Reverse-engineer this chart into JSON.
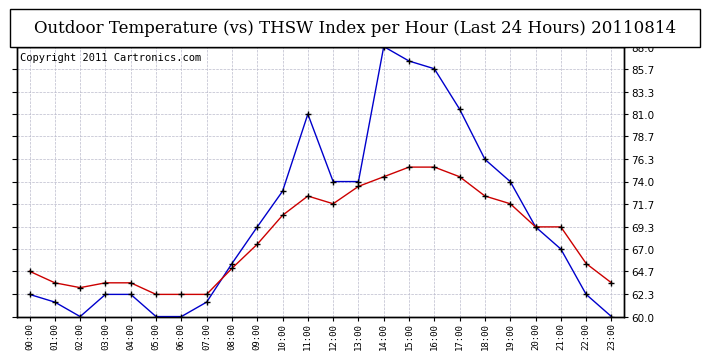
{
  "title": "Outdoor Temperature (vs) THSW Index per Hour (Last 24 Hours) 20110814",
  "copyright": "Copyright 2011 Cartronics.com",
  "hours": [
    "00:00",
    "01:00",
    "02:00",
    "03:00",
    "04:00",
    "05:00",
    "06:00",
    "07:00",
    "08:00",
    "09:00",
    "10:00",
    "11:00",
    "12:00",
    "13:00",
    "14:00",
    "15:00",
    "16:00",
    "17:00",
    "18:00",
    "19:00",
    "20:00",
    "21:00",
    "22:00",
    "23:00"
  ],
  "temp_red": [
    64.7,
    63.5,
    63.0,
    63.5,
    63.5,
    62.3,
    62.3,
    62.3,
    65.0,
    67.5,
    70.5,
    72.5,
    71.7,
    73.5,
    74.5,
    75.5,
    75.5,
    74.5,
    72.5,
    71.7,
    69.3,
    69.3,
    65.5,
    63.5
  ],
  "thsw_blue": [
    62.3,
    61.5,
    60.0,
    62.3,
    62.3,
    60.0,
    60.0,
    61.5,
    65.5,
    69.3,
    73.0,
    81.0,
    74.0,
    74.0,
    88.0,
    86.5,
    85.7,
    81.5,
    76.3,
    74.0,
    69.3,
    67.0,
    62.3,
    60.0
  ],
  "ylim": [
    60.0,
    88.0
  ],
  "yticks": [
    60.0,
    62.3,
    64.7,
    67.0,
    69.3,
    71.7,
    74.0,
    76.3,
    78.7,
    81.0,
    83.3,
    85.7,
    88.0
  ],
  "red_color": "#cc0000",
  "blue_color": "#0000cc",
  "grid_color": "#bbbbcc",
  "bg_color": "#ffffff",
  "plot_bg": "#ffffff",
  "title_fontsize": 12,
  "copyright_fontsize": 7.5
}
